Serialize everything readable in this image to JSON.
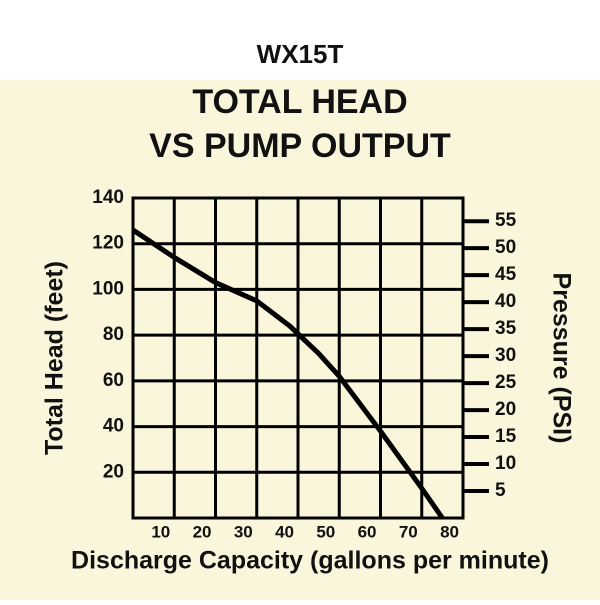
{
  "chart_data": {
    "type": "line",
    "header": "WX15T",
    "title_lines": [
      "TOTAL HEAD",
      "VS PUMP OUTPUT"
    ],
    "x_label": "Discharge Capacity (gallons per minute)",
    "y_label": "Total Head (feet)",
    "y2_label": "Pressure (PSI)",
    "x": [
      0,
      10,
      20,
      30,
      38,
      45,
      50,
      60,
      70,
      75
    ],
    "series": [
      {
        "name": "WX15T",
        "color": "#000000",
        "values": [
          126,
          114,
          103,
          95,
          84,
          72,
          62,
          38,
          13,
          0
        ]
      }
    ],
    "xlim": [
      0,
      80
    ],
    "xticks": [
      10,
      20,
      30,
      40,
      50,
      60,
      70,
      80
    ],
    "ylim": [
      0,
      140
    ],
    "yticks": [
      20,
      40,
      60,
      80,
      100,
      120,
      140
    ],
    "y2lim": [
      0,
      59.3
    ],
    "y2ticks": [
      5,
      10,
      15,
      20,
      25,
      30,
      35,
      40,
      45,
      50,
      55
    ],
    "grid": true
  }
}
